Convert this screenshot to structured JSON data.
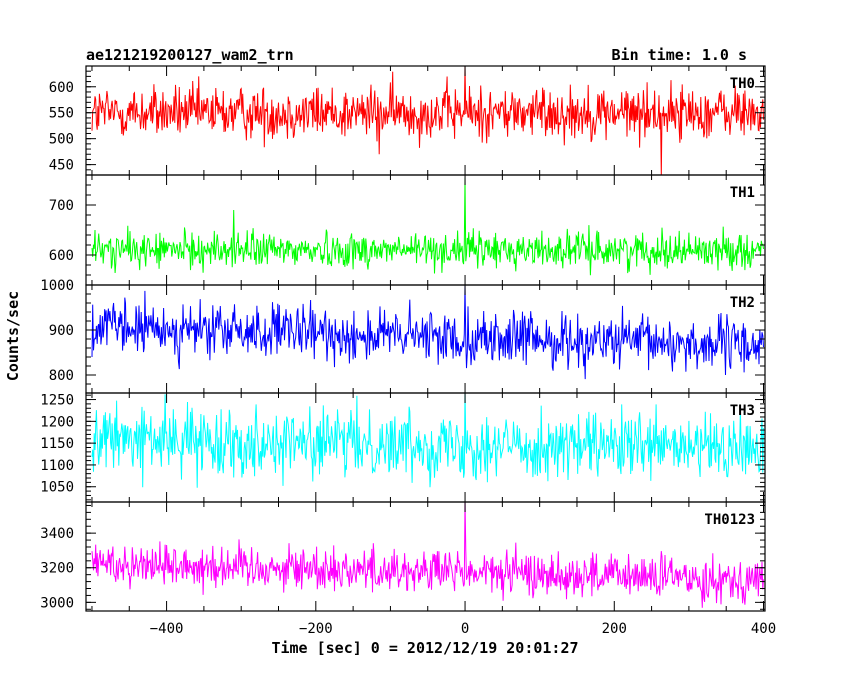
{
  "header": {
    "title": "ae121219200127_wam2_trn",
    "bin_time": "Bin time: 1.0 s"
  },
  "chart_data": {
    "type": "line",
    "title": "ae121219200127_wam2_trn",
    "subtitle": "Bin time: 1.0 s",
    "xlabel": "Time [sec] 0 = 2012/12/19 20:01:27",
    "ylabel": "Counts/sec",
    "xlim": [
      -508,
      402
    ],
    "x_ticks": [
      -400,
      -200,
      0,
      200,
      400
    ],
    "x_tick_labels": [
      "−400",
      "−200",
      "0",
      "200",
      "400"
    ],
    "x_range": [
      -500,
      400
    ],
    "bin_time": 1.0,
    "grid": false,
    "panels": [
      {
        "name": "TH0",
        "color": "#ff0000",
        "ylim": [
          430,
          640
        ],
        "y_ticks": [
          450,
          500,
          550,
          600
        ],
        "y_tick_labels": [
          "450",
          "500",
          "550",
          "600"
        ],
        "mean": 550,
        "sigma": 26,
        "peak": {
          "x": 0,
          "y": 640
        },
        "notable_dips": [
          {
            "x": -115,
            "y": 470
          },
          {
            "x": 263,
            "y": 428
          }
        ]
      },
      {
        "name": "TH1",
        "color": "#00ff00",
        "ylim": [
          540,
          760
        ],
        "y_ticks": [
          600,
          700
        ],
        "y_tick_labels": [
          "600",
          "700"
        ],
        "mean": 610,
        "sigma": 18,
        "peak": {
          "x": 0,
          "y": 755
        },
        "notable_highs": [
          {
            "x": -310,
            "y": 690
          }
        ]
      },
      {
        "name": "TH2",
        "color": "#0000ff",
        "ylim": [
          760,
          1000
        ],
        "y_ticks": [
          800,
          900,
          1000
        ],
        "y_tick_labels": [
          "800",
          "900",
          "1000"
        ],
        "mean_start": 905,
        "mean_end": 865,
        "sigma": 30,
        "peak": {
          "x": 0,
          "y": 1000
        }
      },
      {
        "name": "TH3",
        "color": "#00ffff",
        "ylim": [
          1015,
          1265
        ],
        "y_ticks": [
          1050,
          1100,
          1150,
          1200,
          1250
        ],
        "y_tick_labels": [
          "1050",
          "1100",
          "1150",
          "1200",
          "1250"
        ],
        "mean_start": 1160,
        "mean_end": 1135,
        "sigma": 38,
        "peak": {
          "x": 0,
          "y": 1270
        }
      },
      {
        "name": "TH0123",
        "color": "#ff00ff",
        "ylim": [
          2950,
          3580
        ],
        "y_ticks": [
          3000,
          3200,
          3400
        ],
        "y_tick_labels": [
          "3000",
          "3200",
          "3400"
        ],
        "mean_start": 3230,
        "mean_end": 3130,
        "sigma": 65,
        "peak": {
          "x": 0,
          "y": 3600
        }
      }
    ]
  }
}
